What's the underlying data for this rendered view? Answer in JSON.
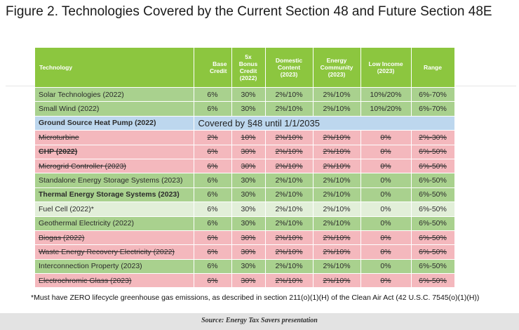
{
  "figure_title": "Figure 2. Technologies Covered by the Current Section 48 and Future Section 48E",
  "table": {
    "headers": {
      "technology": "Technology",
      "base_1": "Base",
      "base_2": "Credit",
      "bonus_1": "5x",
      "bonus_2": "Bonus",
      "bonus_3": "Credit",
      "bonus_4": "(2022)",
      "domestic_1": "Domestic",
      "domestic_2": "Content",
      "domestic_3": "(2023)",
      "energy_1": "Energy",
      "energy_2": "Community",
      "energy_3": "(2023)",
      "low_1": "Low Income",
      "low_2": "(2023)",
      "range": "Range"
    },
    "covered_note": "Covered by §48 until 1/1/2035",
    "rows": [
      {
        "tech": "Solar Technologies (2022)",
        "base": "6%",
        "bonus": "30%",
        "domestic": "2%/10%",
        "energy": "2%/10%",
        "low": "10%/20%",
        "range": "6%-70%"
      },
      {
        "tech": "Small Wind (2022)",
        "base": "6%",
        "bonus": "30%",
        "domestic": "2%/10%",
        "energy": "2%/10%",
        "low": "10%/20%",
        "range": "6%-70%"
      },
      {
        "tech": "Ground Source Heat Pump (2022)"
      },
      {
        "tech": "Microturbine",
        "base": "2%",
        "bonus": "10%",
        "domestic": "2%/10%",
        "energy": "2%/10%",
        "low": "0%",
        "range": "2%-30%"
      },
      {
        "tech": "CHP (2022)",
        "base": "6%",
        "bonus": "30%",
        "domestic": "2%/10%",
        "energy": "2%/10%",
        "low": "0%",
        "range": "6%-50%"
      },
      {
        "tech": "Microgrid Controller (2023)",
        "base": "6%",
        "bonus": "30%",
        "domestic": "2%/10%",
        "energy": "2%/10%",
        "low": "0%",
        "range": "6%-50%"
      },
      {
        "tech": "Standalone Energy Storage Systems (2023)",
        "base": "6%",
        "bonus": "30%",
        "domestic": "2%/10%",
        "energy": "2%/10%",
        "low": "0%",
        "range": "6%-50%"
      },
      {
        "tech": "Thermal Energy Storage Systems (2023)",
        "base": "6%",
        "bonus": "30%",
        "domestic": "2%/10%",
        "energy": "2%/10%",
        "low": "0%",
        "range": "6%-50%"
      },
      {
        "tech": "Fuel Cell (2022)*",
        "base": "6%",
        "bonus": "30%",
        "domestic": "2%/10%",
        "energy": "2%/10%",
        "low": "0%",
        "range": "6%-50%"
      },
      {
        "tech": "Geothermal Electricity (2022)",
        "base": "6%",
        "bonus": "30%",
        "domestic": "2%/10%",
        "energy": "2%/10%",
        "low": "0%",
        "range": "6%-50%"
      },
      {
        "tech": "Biogas (2022)",
        "base": "6%",
        "bonus": "30%",
        "domestic": "2%/10%",
        "energy": "2%/10%",
        "low": "0%",
        "range": "6%-50%"
      },
      {
        "tech": "Waste Energy Recovery Electricity (2022)",
        "base": "6%",
        "bonus": "30%",
        "domestic": "2%/10%",
        "energy": "2%/10%",
        "low": "0%",
        "range": "6%-50%"
      },
      {
        "tech": "Interconnection Property (2023)",
        "base": "6%",
        "bonus": "30%",
        "domestic": "2%/10%",
        "energy": "2%/10%",
        "low": "0%",
        "range": "6%-50%"
      },
      {
        "tech": "Electrochromic Glass (2023)",
        "base": "6%",
        "bonus": "30%",
        "domestic": "2%/10%",
        "energy": "2%/10%",
        "low": "0%",
        "range": "6%-50%"
      }
    ]
  },
  "footnote": "*Must have ZERO lifecycle greenhouse gas emissions, as described in section 211(o)(1)(H) of the Clean Air Act (42 U.S.C. 7545(o)(1)(H))",
  "source": "Source: Energy Tax Savers presentation",
  "colors": {
    "header_green": "#8cc63f",
    "row_green": "#a9d18e",
    "row_pink": "#f4b8bd",
    "row_light_green": "#e2efd9",
    "row_blue": "#bdd7ee"
  }
}
